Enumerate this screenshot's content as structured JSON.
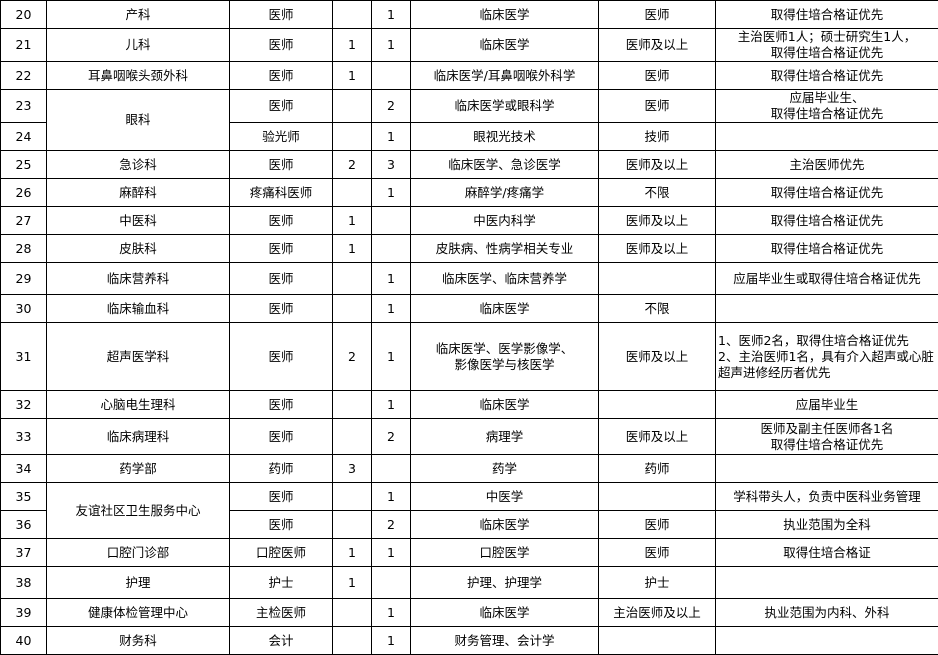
{
  "rows": [
    {
      "no": "20",
      "dept": "产科",
      "pos": "医师",
      "n1": "",
      "n2": "1",
      "major": "临床医学",
      "title": "医师",
      "note": "取得住培合格证优先"
    },
    {
      "no": "21",
      "dept": "儿科",
      "pos": "医师",
      "n1": "1",
      "n2": "1",
      "major": "临床医学",
      "title": "医师及以上",
      "note": "主治医师1人；硕士研究生1人，\n取得住培合格证优先"
    },
    {
      "no": "22",
      "dept": "耳鼻咽喉头颈外科",
      "pos": "医师",
      "n1": "1",
      "n2": "",
      "major": "临床医学/耳鼻咽喉外科学",
      "title": "医师",
      "note": "取得住培合格证优先"
    },
    {
      "no": "23",
      "dept": "眼科",
      "deptSpan": 2,
      "pos": "医师",
      "n1": "",
      "n2": "2",
      "major": "临床医学或眼科学",
      "title": "医师",
      "note": "应届毕业生、\n取得住培合格证优先"
    },
    {
      "no": "24",
      "pos": "验光师",
      "n1": "",
      "n2": "1",
      "major": "眼视光技术",
      "title": "技师",
      "note": ""
    },
    {
      "no": "25",
      "dept": "急诊科",
      "pos": "医师",
      "n1": "2",
      "n2": "3",
      "major": "临床医学、急诊医学",
      "title": "医师及以上",
      "note": "主治医师优先"
    },
    {
      "no": "26",
      "dept": "麻醉科",
      "pos": "疼痛科医师",
      "n1": "",
      "n2": "1",
      "major": "麻醉学/疼痛学",
      "title": "不限",
      "note": "取得住培合格证优先"
    },
    {
      "no": "27",
      "dept": "中医科",
      "pos": "医师",
      "n1": "1",
      "n2": "",
      "major": "中医内科学",
      "title": "医师及以上",
      "note": "取得住培合格证优先"
    },
    {
      "no": "28",
      "dept": "皮肤科",
      "pos": "医师",
      "n1": "1",
      "n2": "",
      "major": "皮肤病、性病学相关专业",
      "title": "医师及以上",
      "note": "取得住培合格证优先"
    },
    {
      "no": "29",
      "dept": "临床营养科",
      "pos": "医师",
      "n1": "",
      "n2": "1",
      "major": "临床医学、临床营养学",
      "title": "",
      "note": "应届毕业生或取得住培合格证优先"
    },
    {
      "no": "30",
      "dept": "临床输血科",
      "pos": "医师",
      "n1": "",
      "n2": "1",
      "major": "临床医学",
      "title": "不限",
      "note": ""
    },
    {
      "no": "31",
      "dept": "超声医学科",
      "pos": "医师",
      "n1": "2",
      "n2": "1",
      "major": "临床医学、医学影像学、\n影像医学与核医学",
      "title": "医师及以上",
      "note": "1、医师2名，取得住培合格证优先\n2、主治医师1名，具有介入超声或心脏超声进修经历者优先",
      "noteLeft": true
    },
    {
      "no": "32",
      "dept": "心脑电生理科",
      "pos": "医师",
      "n1": "",
      "n2": "1",
      "major": "临床医学",
      "title": "",
      "note": "应届毕业生"
    },
    {
      "no": "33",
      "dept": "临床病理科",
      "pos": "医师",
      "n1": "",
      "n2": "2",
      "major": "病理学",
      "title": "医师及以上",
      "note": "医师及副主任医师各1名\n取得住培合格证优先"
    },
    {
      "no": "34",
      "dept": "药学部",
      "pos": "药师",
      "n1": "3",
      "n2": "",
      "major": "药学",
      "title": "药师",
      "note": ""
    },
    {
      "no": "35",
      "dept": "友谊社区卫生服务中心",
      "deptSpan": 2,
      "pos": "医师",
      "n1": "",
      "n2": "1",
      "major": "中医学",
      "title": "",
      "note": "学科带头人，负责中医科业务管理"
    },
    {
      "no": "36",
      "pos": "医师",
      "n1": "",
      "n2": "2",
      "major": "临床医学",
      "title": "医师",
      "note": "执业范围为全科"
    },
    {
      "no": "37",
      "dept": "口腔门诊部",
      "pos": "口腔医师",
      "n1": "1",
      "n2": "1",
      "major": "口腔医学",
      "title": "医师",
      "note": "取得住培合格证"
    },
    {
      "no": "38",
      "dept": "护理",
      "pos": "护士",
      "n1": "1",
      "n2": "",
      "major": "护理、护理学",
      "title": "护士",
      "note": ""
    },
    {
      "no": "39",
      "dept": "健康体检管理中心",
      "pos": "主检医师",
      "n1": "",
      "n2": "1",
      "major": "临床医学",
      "title": "主治医师及以上",
      "note": "执业范围为内科、外科"
    },
    {
      "no": "40",
      "dept": "财务科",
      "pos": "会计",
      "n1": "",
      "n2": "1",
      "major": "财务管理、会计学",
      "title": "",
      "note": ""
    }
  ]
}
